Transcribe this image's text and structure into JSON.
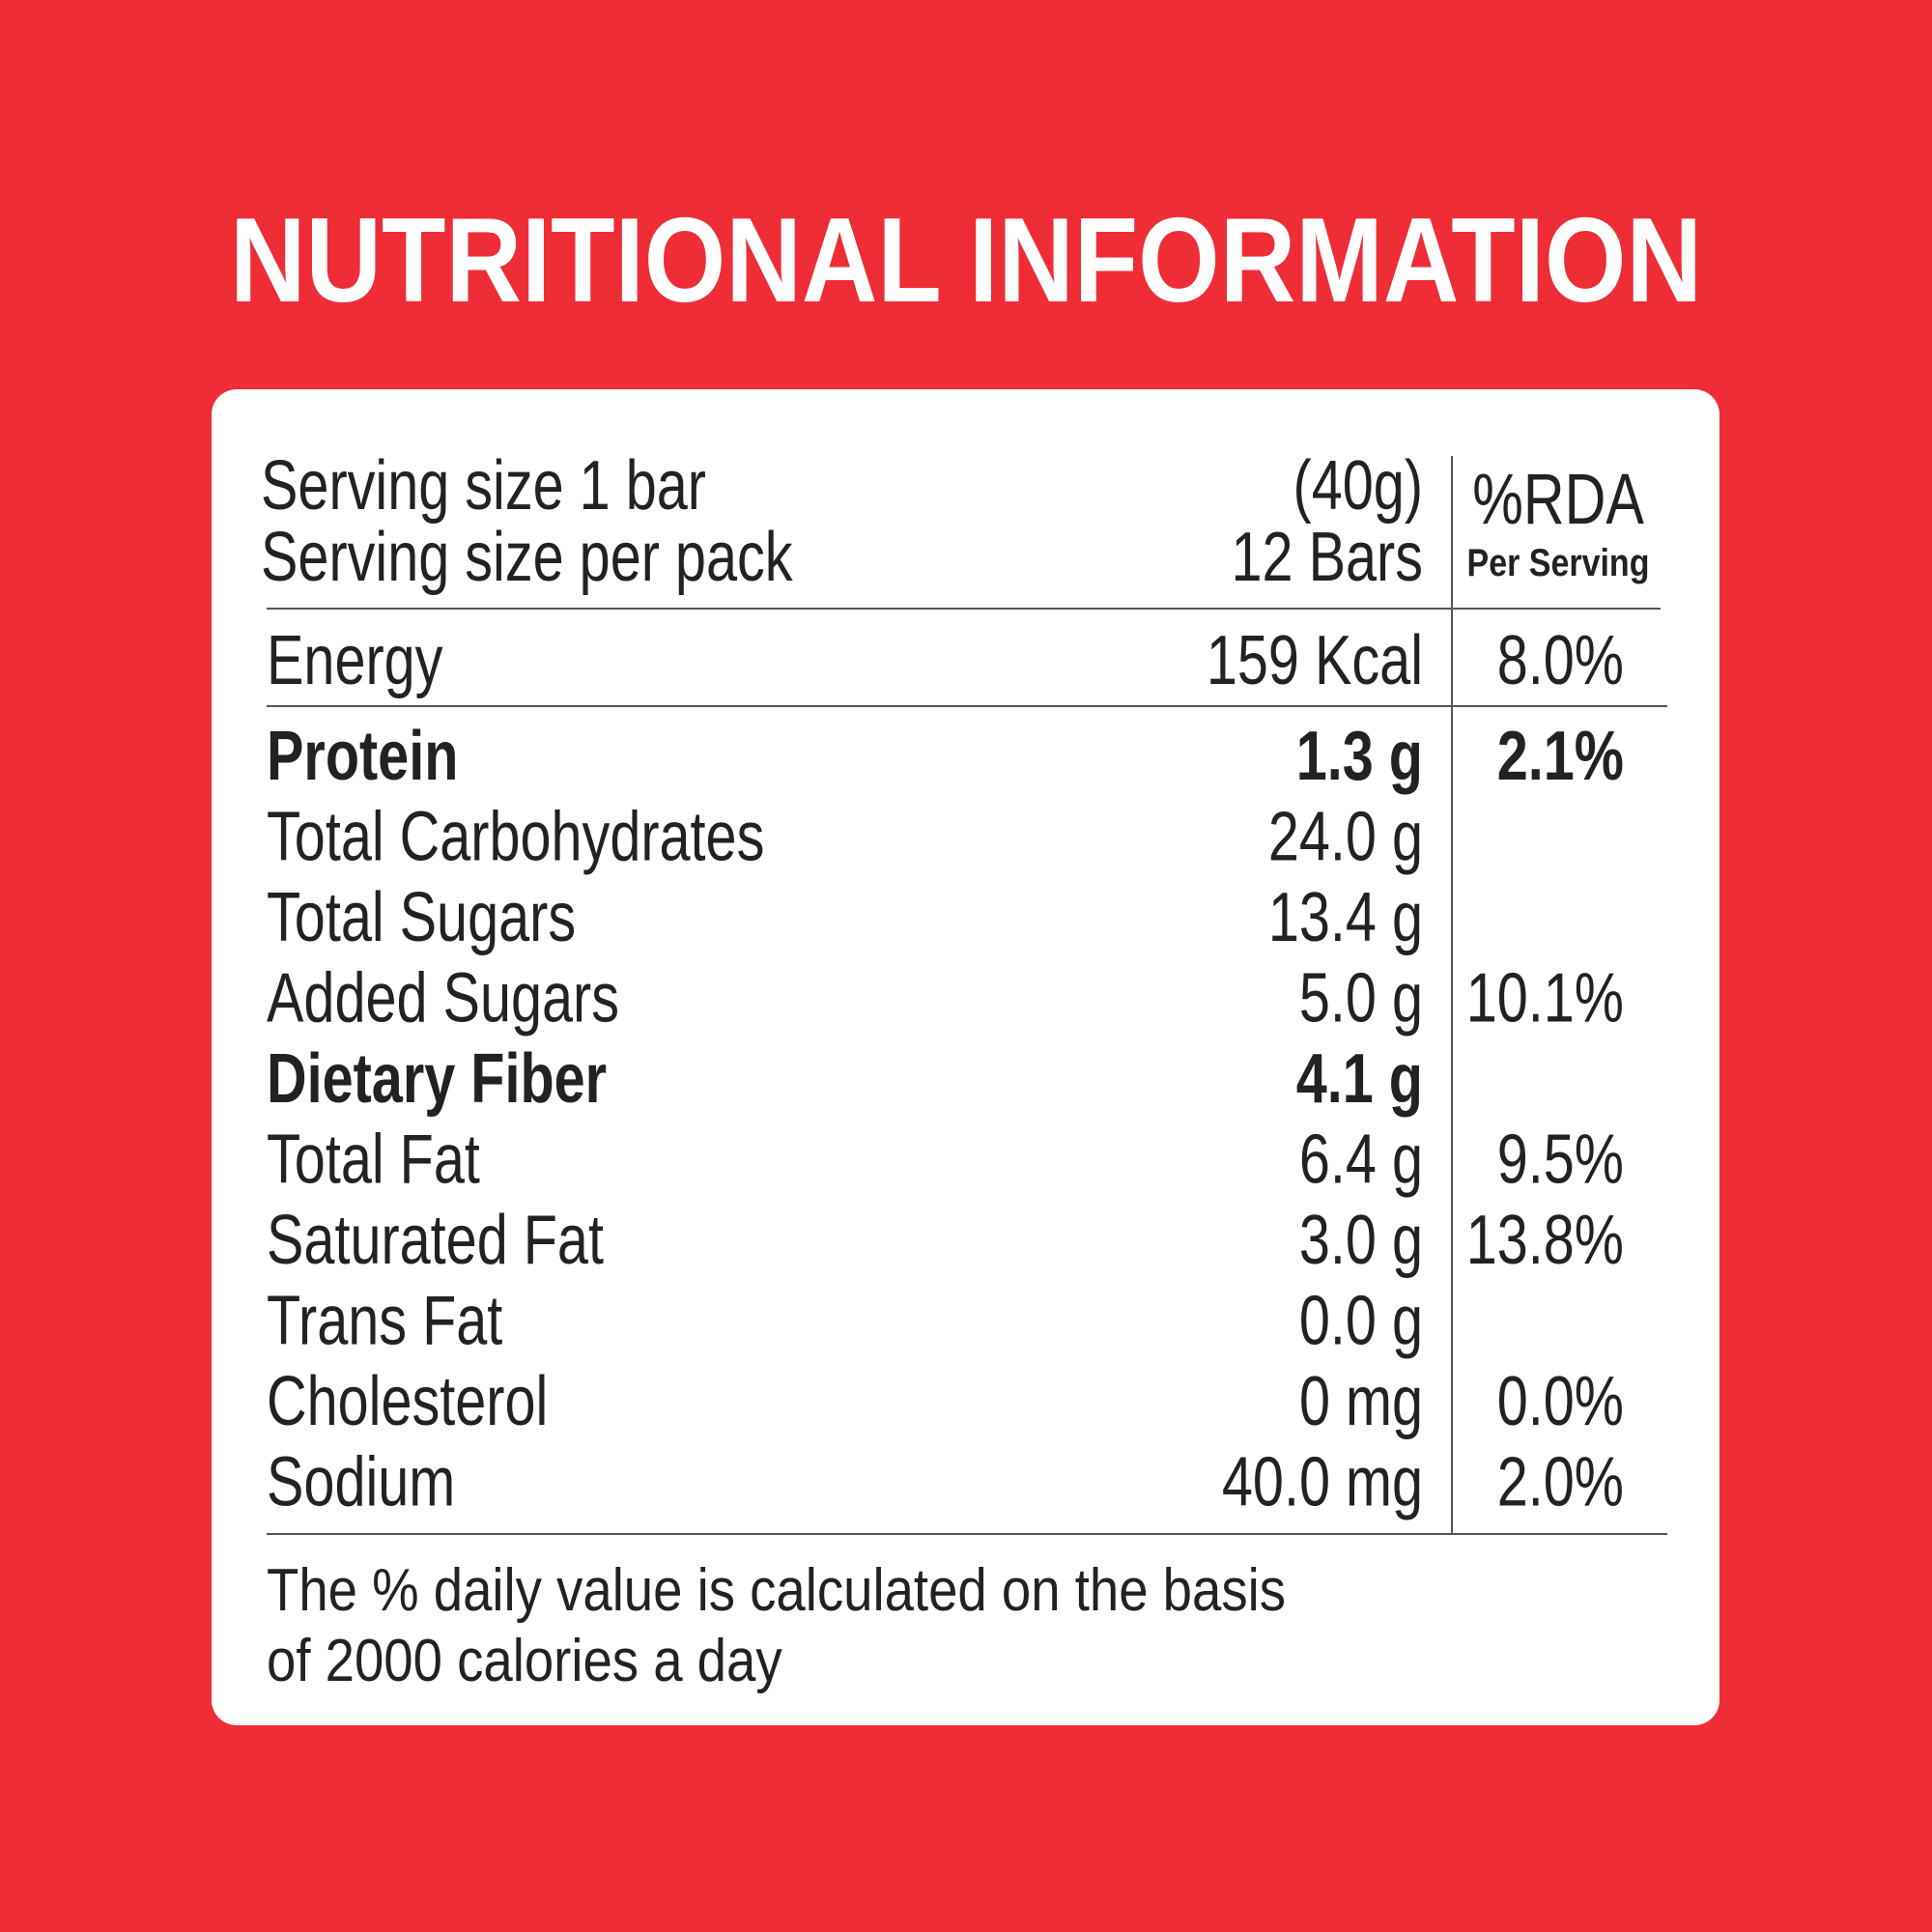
{
  "title": "NUTRITIONAL INFORMATION",
  "serving": {
    "rows": [
      [
        "Serving size 1 bar",
        "(40g)"
      ],
      [
        "Serving size per pack",
        "12 Bars"
      ]
    ],
    "rda_header": "%RDA",
    "rda_subheader": "Per Serving"
  },
  "energy": {
    "name": "Energy",
    "amount": "159 Kcal",
    "rda": "8.0%"
  },
  "nutrients": [
    {
      "name": "Protein",
      "amount": "1.3 g",
      "rda": "2.1%",
      "bold": true
    },
    {
      "name": "Total Carbohydrates",
      "amount": "24.0 g"
    },
    {
      "name": "Total Sugars",
      "amount": "13.4 g"
    },
    {
      "name": "Added Sugars",
      "amount": "5.0 g",
      "rda": "10.1%"
    },
    {
      "name": "Dietary Fiber",
      "amount": "4.1 g",
      "bold": true
    },
    {
      "name": "Total Fat",
      "amount": "6.4 g",
      "rda": "9.5%"
    },
    {
      "name": "Saturated Fat",
      "amount": "3.0 g",
      "rda": "13.8%"
    },
    {
      "name": "Trans Fat",
      "amount": "0.0 g"
    },
    {
      "name": "Cholesterol",
      "amount": "0 mg",
      "rda": "0.0%"
    },
    {
      "name": "Sodium",
      "amount": "40.0 mg",
      "rda": "2.0%"
    }
  ],
  "footnote": [
    "The % daily value is calculated on the basis",
    "of 2000 calories a day"
  ]
}
